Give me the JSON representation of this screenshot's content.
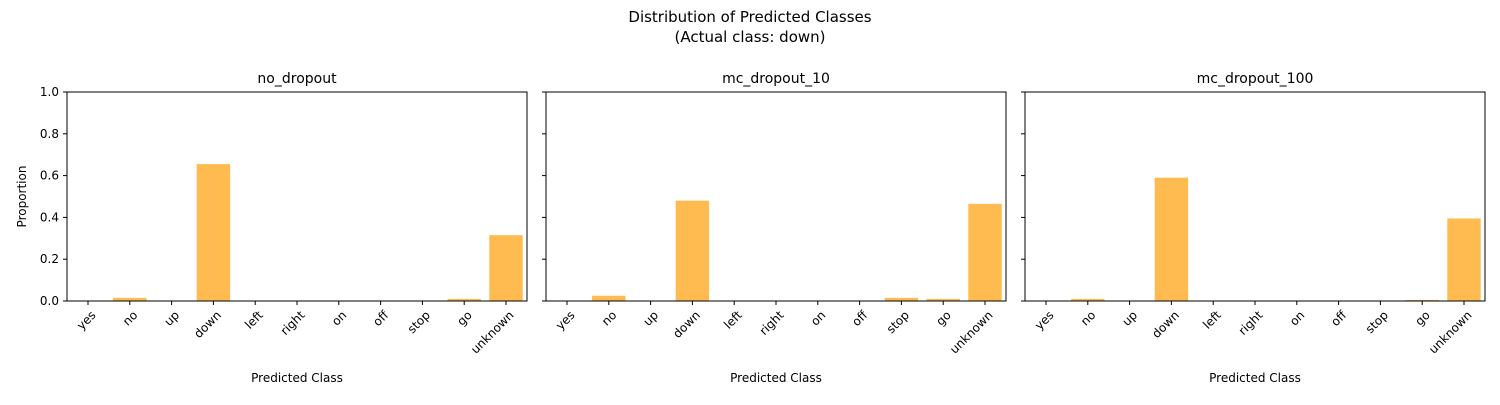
{
  "figure": {
    "title": "Distribution of Predicted Classes",
    "subtitle": "(Actual class: down)"
  },
  "style": {
    "bar_color": "#ffbb4f",
    "axis_color": "#000000",
    "background": "#ffffff"
  },
  "chart_data": [
    {
      "type": "bar",
      "title": "no_dropout",
      "xlabel": "Predicted Class",
      "ylabel": "Proportion",
      "ylim": [
        0,
        1.0
      ],
      "yticks": [
        "0.0",
        "0.2",
        "0.4",
        "0.6",
        "0.8",
        "1.0"
      ],
      "categories": [
        "yes",
        "no",
        "up",
        "down",
        "left",
        "right",
        "on",
        "off",
        "stop",
        "go",
        "unknown"
      ],
      "values": [
        0,
        0.015,
        0,
        0.655,
        0,
        0,
        0,
        0,
        0,
        0.01,
        0.315
      ],
      "grid": false
    },
    {
      "type": "bar",
      "title": "mc_dropout_10",
      "xlabel": "Predicted Class",
      "ylabel": "",
      "ylim": [
        0,
        1.0
      ],
      "yticks": [
        "0.0",
        "0.2",
        "0.4",
        "0.6",
        "0.8",
        "1.0"
      ],
      "categories": [
        "yes",
        "no",
        "up",
        "down",
        "left",
        "right",
        "on",
        "off",
        "stop",
        "go",
        "unknown"
      ],
      "values": [
        0,
        0.025,
        0,
        0.48,
        0,
        0,
        0,
        0,
        0.015,
        0.01,
        0.465
      ],
      "grid": false
    },
    {
      "type": "bar",
      "title": "mc_dropout_100",
      "xlabel": "Predicted Class",
      "ylabel": "",
      "ylim": [
        0,
        1.0
      ],
      "yticks": [
        "0.0",
        "0.2",
        "0.4",
        "0.6",
        "0.8",
        "1.0"
      ],
      "categories": [
        "yes",
        "no",
        "up",
        "down",
        "left",
        "right",
        "on",
        "off",
        "stop",
        "go",
        "unknown"
      ],
      "values": [
        0,
        0.01,
        0,
        0.59,
        0,
        0,
        0,
        0,
        0,
        0.005,
        0.395
      ],
      "grid": false
    }
  ]
}
